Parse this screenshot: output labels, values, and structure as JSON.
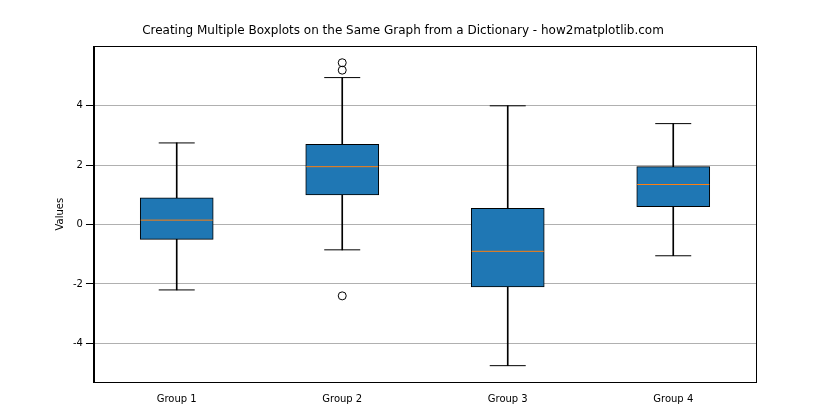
{
  "chart_data": {
    "type": "boxplot",
    "title": "Creating Multiple Boxplots on the Same Graph from a Dictionary - how2matplotlib.com",
    "y_label": "Values",
    "categories": [
      "Group 1",
      "Group 2",
      "Group 3",
      "Group 4"
    ],
    "boxes": [
      {
        "whisker_low": -2.2,
        "q1": -0.5,
        "median": 0.15,
        "q3": 0.9,
        "whisker_high": 2.75,
        "outliers": []
      },
      {
        "whisker_low": -0.85,
        "q1": 1.0,
        "median": 1.95,
        "q3": 2.7,
        "whisker_high": 4.95,
        "outliers": [
          5.2,
          5.45,
          -2.4
        ]
      },
      {
        "whisker_low": -4.75,
        "q1": -2.1,
        "median": -0.9,
        "q3": 0.55,
        "whisker_high": 4.0,
        "outliers": []
      },
      {
        "whisker_low": -1.05,
        "q1": 0.6,
        "median": 1.35,
        "q3": 1.95,
        "whisker_high": 3.4,
        "outliers": []
      }
    ],
    "color": "#1f77b4",
    "ylim": [
      -5.3,
      6.0
    ],
    "yticks": [
      -4,
      -2,
      0,
      2,
      4
    ],
    "grid": "y"
  }
}
